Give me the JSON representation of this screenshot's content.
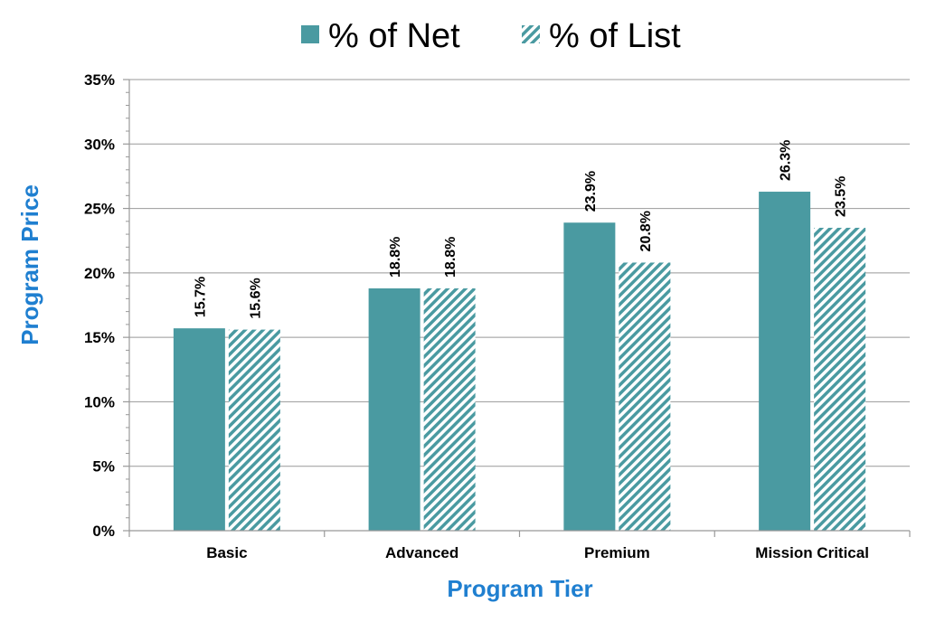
{
  "chart_data": {
    "type": "bar",
    "categories": [
      "Basic",
      "Advanced",
      "Premium",
      "Mission Critical"
    ],
    "series": [
      {
        "name": "% of Net",
        "values": [
          15.7,
          18.8,
          23.9,
          26.3
        ],
        "labels": [
          "15.7%",
          "18.8%",
          "23.9%",
          "26.3%"
        ],
        "color": "#4a9aa1",
        "fill": "solid"
      },
      {
        "name": "% of List",
        "values": [
          15.6,
          18.8,
          20.8,
          23.5
        ],
        "labels": [
          "15.6%",
          "18.8%",
          "20.8%",
          "23.5%"
        ],
        "color": "#4a9aa1",
        "fill": "diagonal-hatch"
      }
    ],
    "xlabel": "Program Tier",
    "ylabel": "Program Price",
    "ylim": [
      0,
      35
    ],
    "yticks": [
      0,
      5,
      10,
      15,
      20,
      25,
      30,
      35
    ],
    "ytick_labels": [
      "0%",
      "5%",
      "10%",
      "15%",
      "20%",
      "25%",
      "30%",
      "35%"
    ],
    "grid": true,
    "legend_position": "top-center",
    "axis_title_color": "#1f7fd0",
    "grid_color": "#999999"
  }
}
